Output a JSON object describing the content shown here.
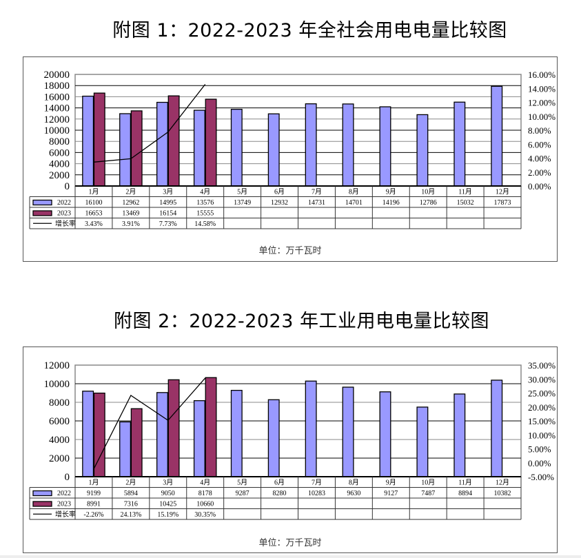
{
  "figures": [
    {
      "title": "附图 1：2022-2023 年全社会用电电量比较图",
      "unit_label": "单位：万千瓦时"
    },
    {
      "title": "附图 2：2022-2023 年工业用电电量比较图",
      "unit_label": "单位：万千瓦时"
    }
  ],
  "colors": {
    "series_2022": "#9999ff",
    "series_2023": "#993366",
    "growth_line": "#000000",
    "gridline": "#000000",
    "frame": "#555555"
  },
  "chart_data": [
    {
      "type": "bar",
      "title": "附图 1：2022-2023 年全社会用电电量比较图",
      "categories": [
        "1月",
        "2月",
        "3月",
        "4月",
        "5月",
        "6月",
        "7月",
        "8月",
        "9月",
        "10月",
        "11月",
        "12月"
      ],
      "series": [
        {
          "name": "2022",
          "type": "bar",
          "axis": "left",
          "values": [
            16100,
            12962,
            14995,
            13576,
            13749,
            12932,
            14731,
            14701,
            14196,
            12786,
            15032,
            17873
          ],
          "labels": [
            "16100",
            "12962",
            "14995",
            "13576",
            "13749",
            "12932",
            "14731",
            "14701",
            "14196",
            "12786",
            "15032",
            "17873"
          ]
        },
        {
          "name": "2023",
          "type": "bar",
          "axis": "left",
          "values": [
            16653,
            13469,
            16154,
            15555,
            null,
            null,
            null,
            null,
            null,
            null,
            null,
            null
          ],
          "labels": [
            "16653",
            "13469",
            "16154",
            "15555",
            "",
            "",
            "",
            "",
            "",
            "",
            "",
            ""
          ]
        },
        {
          "name": "增长率",
          "type": "line",
          "axis": "right",
          "values": [
            3.43,
            3.91,
            7.73,
            14.58,
            null,
            null,
            null,
            null,
            null,
            null,
            null,
            null
          ],
          "labels": [
            "3.43%",
            "3.91%",
            "7.73%",
            "14.58%",
            "",
            "",
            "",
            "",
            "",
            "",
            "",
            ""
          ]
        }
      ],
      "left_axis": {
        "min": 0,
        "max": 20000,
        "step": 2000,
        "ticks": [
          "20000",
          "18000",
          "16000",
          "14000",
          "12000",
          "10000",
          "8000",
          "6000",
          "4000",
          "2000",
          "0"
        ]
      },
      "right_axis": {
        "min": 0,
        "max": 16,
        "step": 2,
        "ticks": [
          "16.00%",
          "14.00%",
          "12.00%",
          "10.00%",
          "8.00%",
          "6.00%",
          "4.00%",
          "2.00%",
          "0.00%"
        ]
      },
      "xlabel": "",
      "ylabel": "万千瓦时",
      "grid": true,
      "legend_position": "data-table-below",
      "unit": "单位：万千瓦时"
    },
    {
      "type": "bar",
      "title": "附图 2：2022-2023 年工业用电电量比较图",
      "categories": [
        "1月",
        "2月",
        "3月",
        "4月",
        "5月",
        "6月",
        "7月",
        "8月",
        "9月",
        "10月",
        "11月",
        "12月"
      ],
      "series": [
        {
          "name": "2022",
          "type": "bar",
          "axis": "left",
          "values": [
            9199,
            5894,
            9050,
            8178,
            9287,
            8280,
            10283,
            9630,
            9127,
            7487,
            8894,
            10382
          ],
          "labels": [
            "9199",
            "5894",
            "9050",
            "8178",
            "9287",
            "8280",
            "10283",
            "9630",
            "9127",
            "7487",
            "8894",
            "10382"
          ]
        },
        {
          "name": "2023",
          "type": "bar",
          "axis": "left",
          "values": [
            8991,
            7316,
            10425,
            10660,
            null,
            null,
            null,
            null,
            null,
            null,
            null,
            null
          ],
          "labels": [
            "8991",
            "7316",
            "10425",
            "10660",
            "",
            "",
            "",
            "",
            "",
            "",
            "",
            ""
          ]
        },
        {
          "name": "增长率",
          "type": "line",
          "axis": "right",
          "values": [
            -2.26,
            24.13,
            15.19,
            30.35,
            null,
            null,
            null,
            null,
            null,
            null,
            null,
            null
          ],
          "labels": [
            "-2.26%",
            "24.13%",
            "15.19%",
            "30.35%",
            "",
            "",
            "",
            "",
            "",
            "",
            "",
            ""
          ]
        }
      ],
      "left_axis": {
        "min": 0,
        "max": 12000,
        "step": 2000,
        "ticks": [
          "12000",
          "10000",
          "8000",
          "6000",
          "4000",
          "2000",
          "0"
        ]
      },
      "right_axis": {
        "min": -5,
        "max": 35,
        "step": 5,
        "ticks": [
          "35.00%",
          "30.00%",
          "25.00%",
          "20.00%",
          "15.00%",
          "10.00%",
          "5.00%",
          "0.00%",
          "-5.00%"
        ]
      },
      "xlabel": "",
      "ylabel": "万千瓦时",
      "grid": true,
      "legend_position": "data-table-below",
      "unit": "单位：万千瓦时"
    }
  ]
}
